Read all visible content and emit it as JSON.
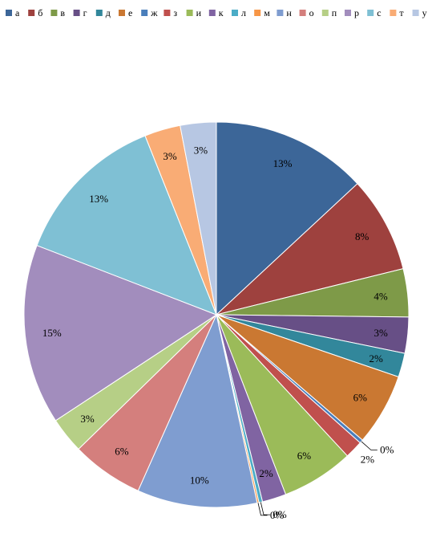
{
  "chart_data": {
    "type": "pie",
    "legend_position": "top",
    "categories": [
      "а",
      "б",
      "в",
      "г",
      "д",
      "е",
      "ж",
      "з",
      "и",
      "к",
      "л",
      "м",
      "н",
      "о",
      "п",
      "р",
      "с",
      "т",
      "у"
    ],
    "values": [
      13,
      8,
      4,
      3,
      2,
      6,
      0.3,
      1.5,
      6,
      2,
      0.3,
      0.15,
      10,
      6,
      3,
      15,
      13,
      3,
      3
    ],
    "data_labels": [
      "13%",
      "8%",
      "4%",
      "3%",
      "2%",
      "6%",
      "0%",
      "2%",
      "6%",
      "2%",
      "0%",
      "0%",
      "10%",
      "6%",
      "3%",
      "15%",
      "13%",
      "3%",
      "3%"
    ],
    "colors": [
      "#3C6698",
      "#9E413E",
      "#7E9A48",
      "#674F86",
      "#32879B",
      "#CA7832",
      "#4A7EBB",
      "#C0504D",
      "#9BBB59",
      "#8064A2",
      "#4BACC6",
      "#F79646",
      "#7F9DD0",
      "#D47F7D",
      "#B6CF86",
      "#A28DBD",
      "#7FC0D4",
      "#F9AC75",
      "#B7C7E3"
    ]
  }
}
